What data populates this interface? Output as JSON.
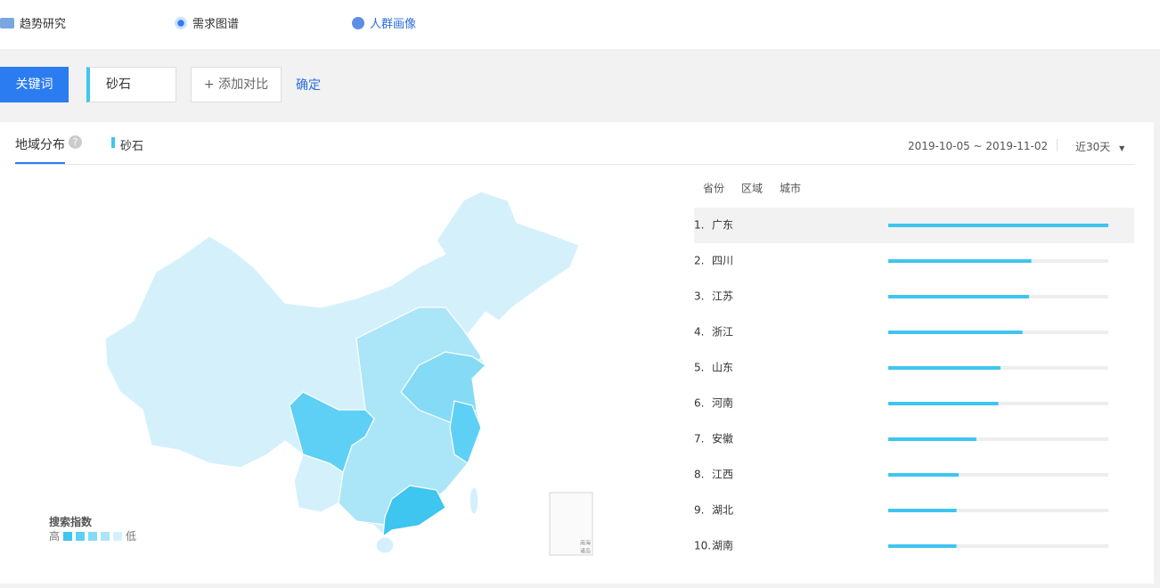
{
  "nav": {
    "items": [
      "趋势研究",
      "需求图谱",
      "人群画像"
    ]
  },
  "search": {
    "button": "关键词",
    "keyword": "砂石",
    "add": "+ 添加对比",
    "confirm": "确定"
  },
  "panel": {
    "tab": "地域分布",
    "help": "?",
    "legend_keyword": "砂石",
    "date_range": "2019-10-05 ~ 2019-11-02",
    "period": "近30天"
  },
  "map": {
    "legend_title": "搜索指数",
    "high": "高",
    "low": "低",
    "inset": [
      "南海",
      "诸岛"
    ]
  },
  "chart_data": {
    "type": "bar",
    "orientation": "horizontal",
    "tabs": [
      "省份",
      "区域",
      "城市"
    ],
    "ranks": [
      "1.",
      "2.",
      "3.",
      "4.",
      "5.",
      "6.",
      "7.",
      "8.",
      "9.",
      "10."
    ],
    "categories": [
      "广东",
      "四川",
      "江苏",
      "浙江",
      "山东",
      "河南",
      "安徽",
      "江西",
      "湖北",
      "湖南"
    ],
    "values": [
      100,
      65,
      64,
      61,
      51,
      50,
      40,
      32,
      31,
      31
    ],
    "xlim": [
      0,
      100
    ],
    "color": "#3ec5f0"
  }
}
